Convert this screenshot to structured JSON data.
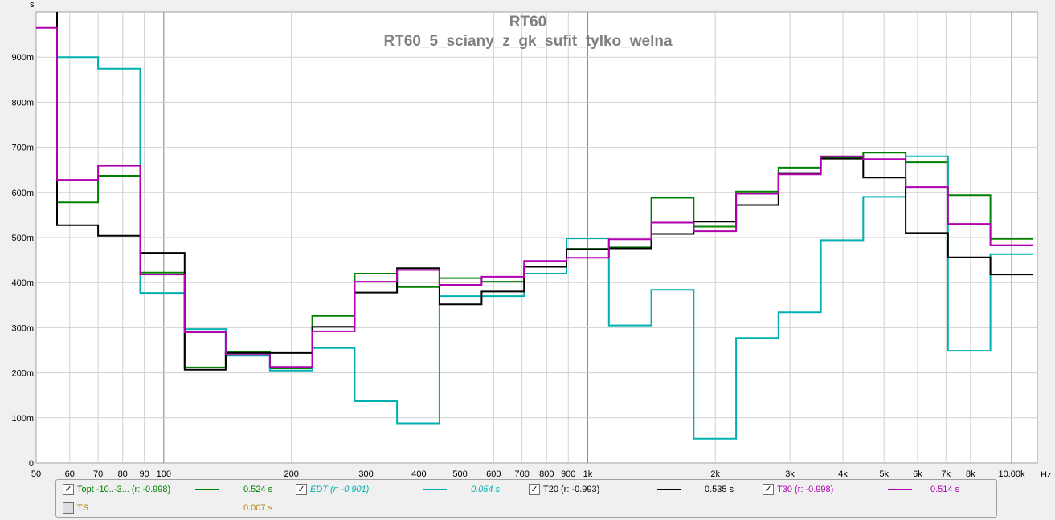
{
  "chart_data": {
    "type": "line",
    "title": "RT60",
    "subtitle": "RT60_5_sciany_z_gk_sufit_tylko_welna",
    "xlabel": "Hz",
    "ylabel": "s",
    "x_scale": "log",
    "xlim": [
      50,
      11500
    ],
    "ylim": [
      0,
      1
    ],
    "grid": true,
    "x_ticks": [
      {
        "v": 50,
        "label": "50"
      },
      {
        "v": 60,
        "label": "60"
      },
      {
        "v": 70,
        "label": "70"
      },
      {
        "v": 80,
        "label": "80"
      },
      {
        "v": 90,
        "label": "90"
      },
      {
        "v": 100,
        "label": "100"
      },
      {
        "v": 200,
        "label": "200"
      },
      {
        "v": 300,
        "label": "300"
      },
      {
        "v": 400,
        "label": "400"
      },
      {
        "v": 500,
        "label": "500"
      },
      {
        "v": 600,
        "label": "600"
      },
      {
        "v": 700,
        "label": "700"
      },
      {
        "v": 800,
        "label": "800"
      },
      {
        "v": 900,
        "label": "900"
      },
      {
        "v": 1000,
        "label": "1k"
      },
      {
        "v": 2000,
        "label": "2k"
      },
      {
        "v": 3000,
        "label": "3k"
      },
      {
        "v": 4000,
        "label": "4k"
      },
      {
        "v": 5000,
        "label": "5k"
      },
      {
        "v": 6000,
        "label": "6k"
      },
      {
        "v": 7000,
        "label": "7k"
      },
      {
        "v": 8000,
        "label": "8k"
      },
      {
        "v": 10000,
        "label": "10.00k"
      }
    ],
    "x_unit_label": "Hz",
    "y_ticks": [
      {
        "v": 0,
        "label": "0"
      },
      {
        "v": 0.1,
        "label": "100m"
      },
      {
        "v": 0.2,
        "label": "200m"
      },
      {
        "v": 0.3,
        "label": "300m"
      },
      {
        "v": 0.4,
        "label": "400m"
      },
      {
        "v": 0.5,
        "label": "500m"
      },
      {
        "v": 0.6,
        "label": "600m"
      },
      {
        "v": 0.7,
        "label": "700m"
      },
      {
        "v": 0.8,
        "label": "800m"
      },
      {
        "v": 0.9,
        "label": "900m"
      }
    ],
    "y_unit_label": "s",
    "bands": [
      50,
      56,
      70,
      88,
      112,
      140,
      178,
      224,
      282,
      355,
      447,
      562,
      708,
      891,
      1122,
      1413,
      1778,
      2239,
      2818,
      3548,
      4467,
      5623,
      7079,
      8913,
      11220
    ],
    "series": [
      {
        "name": "Topt -10..-3... (r: -0.998)",
        "color": "#008000",
        "style": "normal",
        "values": [
          null,
          0.578,
          0.637,
          0.422,
          0.212,
          0.247,
          0.21,
          0.326,
          0.42,
          0.39,
          0.41,
          0.402,
          0.435,
          0.475,
          0.478,
          0.588,
          0.524,
          0.602,
          0.655,
          0.678,
          0.688,
          0.667,
          0.594,
          0.497
        ],
        "initial": [
          1.0,
          0.578
        ]
      },
      {
        "name": "EDT (r: -0.901)",
        "color": "#00b0b0",
        "style": "italic",
        "values": [
          null,
          0.9,
          0.874,
          0.377,
          0.297,
          0.238,
          0.205,
          0.255,
          0.137,
          0.088,
          0.37,
          0.37,
          0.42,
          0.498,
          0.305,
          0.384,
          0.054,
          0.277,
          0.334,
          0.494,
          0.59,
          0.68,
          0.249,
          0.463
        ],
        "initial": [
          1.0,
          0.9
        ]
      },
      {
        "name": "T20 (r: -0.993)",
        "color": "#000000",
        "style": "normal",
        "values": [
          null,
          0.527,
          0.504,
          0.466,
          0.207,
          0.244,
          0.244,
          0.302,
          0.378,
          0.432,
          0.352,
          0.38,
          0.435,
          0.474,
          0.476,
          0.508,
          0.535,
          0.572,
          0.643,
          0.675,
          0.633,
          0.51,
          0.456,
          0.418
        ],
        "initial": [
          1.0,
          0.527
        ]
      },
      {
        "name": "T30 (r: -0.998)",
        "color": "#b000b0",
        "style": "normal",
        "values": [
          0.965,
          0.628,
          0.659,
          0.418,
          0.29,
          0.24,
          0.213,
          0.292,
          0.402,
          0.428,
          0.395,
          0.413,
          0.448,
          0.455,
          0.496,
          0.533,
          0.514,
          0.597,
          0.64,
          0.68,
          0.674,
          0.612,
          0.53,
          0.483
        ],
        "initial": null
      }
    ]
  },
  "legend": [
    {
      "label": "Topt -10..-3... (r: -0.998)",
      "value": "0.524 s",
      "color": "#008000",
      "checked": true,
      "italic": false
    },
    {
      "label": "EDT (r: -0.901)",
      "value": "0.054 s",
      "color": "#00b0b0",
      "checked": true,
      "italic": true
    },
    {
      "label": "T20 (r: -0.993)",
      "value": "0.535 s",
      "color": "#000000",
      "checked": true,
      "italic": false
    },
    {
      "label": "T30 (r: -0.998)",
      "value": "0.514 s",
      "color": "#b000b0",
      "checked": true,
      "italic": false
    },
    {
      "label": "TS",
      "value": "0.007 s",
      "color": "#b08000",
      "checked": false,
      "italic": false
    }
  ],
  "checkbox_mark": "✓"
}
